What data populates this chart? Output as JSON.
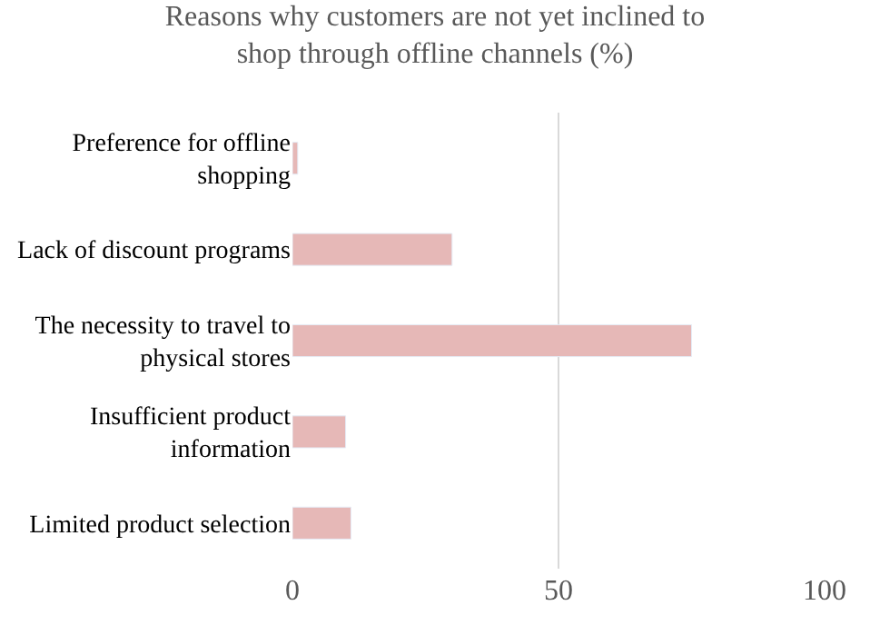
{
  "chart_data": {
    "type": "bar",
    "orientation": "horizontal",
    "title": "Reasons why customers are not yet inclined to shop through offline channels (%)",
    "categories": [
      "Preference for offline shopping",
      "Lack of discount programs",
      "The necessity to travel to physical stores",
      "Insufficient product information",
      "Limited product selection"
    ],
    "values": [
      1,
      30,
      75,
      10,
      11
    ],
    "color": "#e6b8b7",
    "xlim": [
      0,
      100
    ],
    "xticks": [
      0,
      50,
      100
    ],
    "grid": "x"
  }
}
